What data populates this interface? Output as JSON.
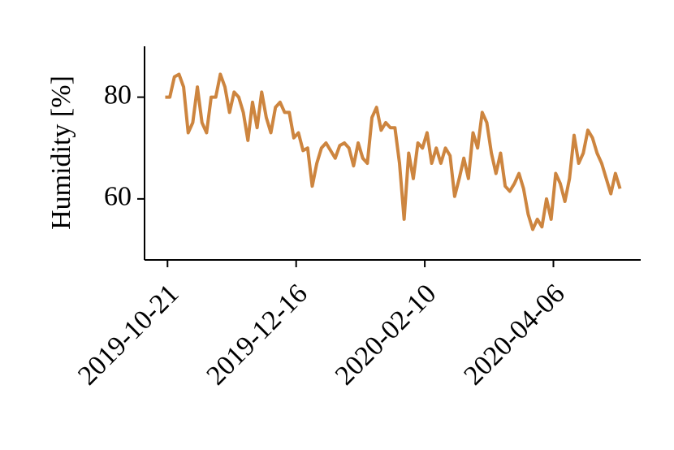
{
  "chart_data": {
    "type": "line",
    "y_label": "Humidity [%]",
    "x": [
      "2019-10-20",
      "2019-10-22",
      "2019-10-24",
      "2019-10-26",
      "2019-10-28",
      "2019-10-30",
      "2019-11-01",
      "2019-11-03",
      "2019-11-05",
      "2019-11-07",
      "2019-11-09",
      "2019-11-11",
      "2019-11-13",
      "2019-11-15",
      "2019-11-17",
      "2019-11-19",
      "2019-11-21",
      "2019-11-23",
      "2019-11-25",
      "2019-11-27",
      "2019-11-29",
      "2019-12-01",
      "2019-12-03",
      "2019-12-05",
      "2019-12-07",
      "2019-12-09",
      "2019-12-11",
      "2019-12-13",
      "2019-12-15",
      "2019-12-17",
      "2019-12-19",
      "2019-12-21",
      "2019-12-23",
      "2019-12-25",
      "2019-12-27",
      "2019-12-29",
      "2019-12-31",
      "2020-01-02",
      "2020-01-04",
      "2020-01-06",
      "2020-01-08",
      "2020-01-10",
      "2020-01-12",
      "2020-01-14",
      "2020-01-16",
      "2020-01-18",
      "2020-01-20",
      "2020-01-22",
      "2020-01-24",
      "2020-01-26",
      "2020-01-28",
      "2020-01-30",
      "2020-02-01",
      "2020-02-03",
      "2020-02-05",
      "2020-02-07",
      "2020-02-09",
      "2020-02-11",
      "2020-02-13",
      "2020-02-15",
      "2020-02-17",
      "2020-02-19",
      "2020-02-21",
      "2020-02-23",
      "2020-02-25",
      "2020-02-27",
      "2020-02-29",
      "2020-03-02",
      "2020-03-04",
      "2020-03-06",
      "2020-03-08",
      "2020-03-10",
      "2020-03-12",
      "2020-03-14",
      "2020-03-16",
      "2020-03-18",
      "2020-03-20",
      "2020-03-22",
      "2020-03-24",
      "2020-03-26",
      "2020-03-28",
      "2020-03-30",
      "2020-04-01",
      "2020-04-03",
      "2020-04-05",
      "2020-04-07",
      "2020-04-09",
      "2020-04-11",
      "2020-04-13",
      "2020-04-15",
      "2020-04-17",
      "2020-04-19",
      "2020-04-21",
      "2020-04-23",
      "2020-04-25",
      "2020-04-27",
      "2020-04-29",
      "2020-05-01",
      "2020-05-03",
      "2020-05-05"
    ],
    "series": [
      {
        "color": "#cd853f",
        "values": [
          80,
          80,
          84,
          84.5,
          82,
          73,
          75,
          82,
          75,
          73,
          80,
          80,
          84.5,
          82,
          77,
          81,
          80,
          77,
          71.5,
          79,
          74,
          81,
          76,
          73,
          78,
          79,
          77,
          77,
          72,
          73,
          69.5,
          70,
          62.5,
          67,
          70,
          71,
          69.5,
          68,
          70.5,
          71,
          70,
          66.5,
          71,
          68,
          67,
          76,
          78,
          73.5,
          75,
          74,
          74,
          67,
          56,
          69,
          64,
          71,
          70,
          73,
          67,
          70,
          67,
          70,
          68.5,
          60.5,
          64,
          68,
          64,
          73,
          70,
          77,
          75,
          69,
          65,
          69,
          62.5,
          61.5,
          63,
          65,
          62,
          57,
          54,
          56,
          54.5,
          60,
          56,
          65,
          63,
          59.5,
          64,
          72.5,
          67,
          69,
          73.5,
          72,
          69,
          67,
          64,
          61,
          65,
          62
        ]
      }
    ],
    "xlim": [
      "2019-10-11",
      "2020-05-14"
    ],
    "xticks": [
      "2019-10-21",
      "2019-12-16",
      "2020-02-10",
      "2020-04-06"
    ],
    "ylim": [
      48,
      90
    ],
    "yticks": [
      60,
      80
    ]
  }
}
